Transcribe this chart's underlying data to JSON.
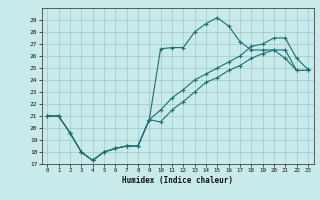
{
  "xlabel": "Humidex (Indice chaleur)",
  "xlim": [
    -0.5,
    23.5
  ],
  "ylim": [
    17,
    30
  ],
  "yticks": [
    17,
    18,
    19,
    20,
    21,
    22,
    23,
    24,
    25,
    26,
    27,
    28,
    29
  ],
  "xticks": [
    0,
    1,
    2,
    3,
    4,
    5,
    6,
    7,
    8,
    9,
    10,
    11,
    12,
    13,
    14,
    15,
    16,
    17,
    18,
    19,
    20,
    21,
    22,
    23
  ],
  "bg_color": "#c8eaea",
  "grid_color": "#9ec8c8",
  "line_color": "#1a7070",
  "line1_y": [
    21.0,
    21.0,
    19.6,
    18.0,
    17.3,
    18.0,
    18.3,
    18.5,
    18.5,
    20.7,
    26.6,
    26.7,
    26.7,
    28.0,
    28.7,
    29.2,
    28.5,
    27.2,
    26.5,
    26.5,
    26.5,
    25.8,
    24.8,
    24.8
  ],
  "line2_y": [
    21.0,
    21.0,
    19.6,
    18.0,
    17.3,
    18.0,
    18.3,
    18.5,
    18.5,
    20.7,
    21.5,
    22.5,
    23.2,
    24.0,
    24.5,
    25.0,
    25.5,
    26.0,
    26.8,
    27.0,
    27.5,
    27.5,
    25.8,
    24.9
  ],
  "line3_y": [
    21.0,
    21.0,
    19.6,
    18.0,
    17.3,
    18.0,
    18.3,
    18.5,
    18.5,
    20.7,
    20.5,
    21.5,
    22.2,
    23.0,
    23.8,
    24.2,
    24.8,
    25.2,
    25.8,
    26.2,
    26.5,
    26.5,
    24.8,
    24.8
  ]
}
